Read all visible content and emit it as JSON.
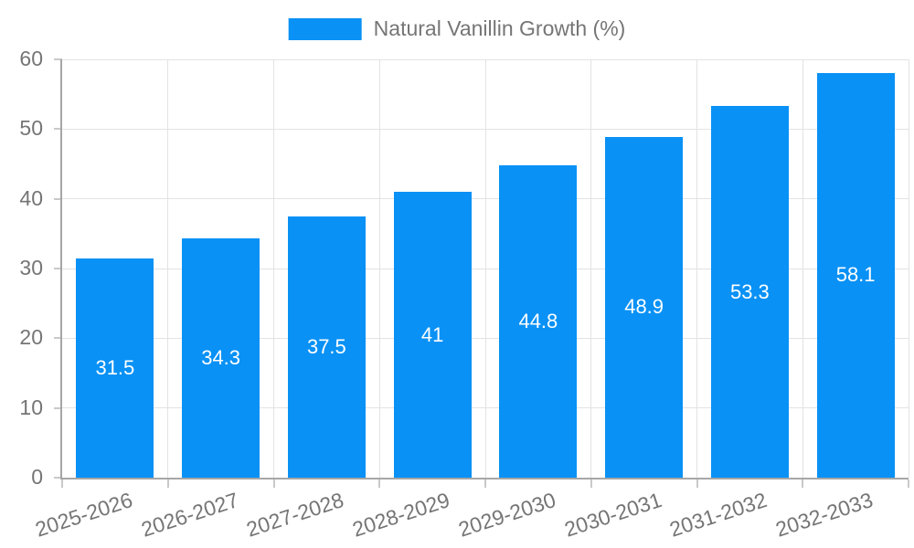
{
  "legend": {
    "label": "Natural Vanillin Growth (%)"
  },
  "colors": {
    "bar": "#0991F5",
    "axis_label": "#757575",
    "value_label": "#ffffff",
    "gridline": "#e3e3e3",
    "axis_line": "#a6a6a6",
    "tick": "#c9c9c9",
    "background": "#ffffff"
  },
  "chart_data": {
    "type": "bar",
    "title": "Natural Vanillin Growth (%)",
    "categories": [
      "2025-2026",
      "2026-2027",
      "2027-2028",
      "2028-2029",
      "2029-2030",
      "2030-2031",
      "2031-2032",
      "2032-2033"
    ],
    "values": [
      31.5,
      34.3,
      37.5,
      41,
      44.8,
      48.9,
      53.3,
      58.1
    ],
    "xlabel": "",
    "ylabel": "",
    "ylim": [
      0,
      60
    ],
    "yticks": [
      0,
      10,
      20,
      30,
      40,
      50,
      60
    ],
    "grid": true,
    "legend_position": "top",
    "value_labels_inside_bars": true,
    "x_label_rotation_deg": -18
  }
}
